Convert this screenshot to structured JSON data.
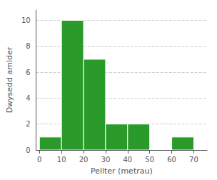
{
  "chart_data": {
    "type": "histogram",
    "bins": [
      0,
      10,
      20,
      30,
      40,
      50,
      60,
      70
    ],
    "values": [
      1,
      10,
      7,
      2,
      2,
      0,
      1
    ],
    "color": "#2a9a2a",
    "xlabel": "Pellter (metrau)",
    "ylabel": "Dwysedd amlder",
    "xlim": [
      -1.5,
      76
    ],
    "ylim": [
      0,
      10.8
    ],
    "xticks": [
      0,
      10,
      20,
      30,
      40,
      50,
      60,
      70
    ],
    "yticks": [
      0,
      2,
      4,
      6,
      8,
      10
    ],
    "grid": true
  }
}
